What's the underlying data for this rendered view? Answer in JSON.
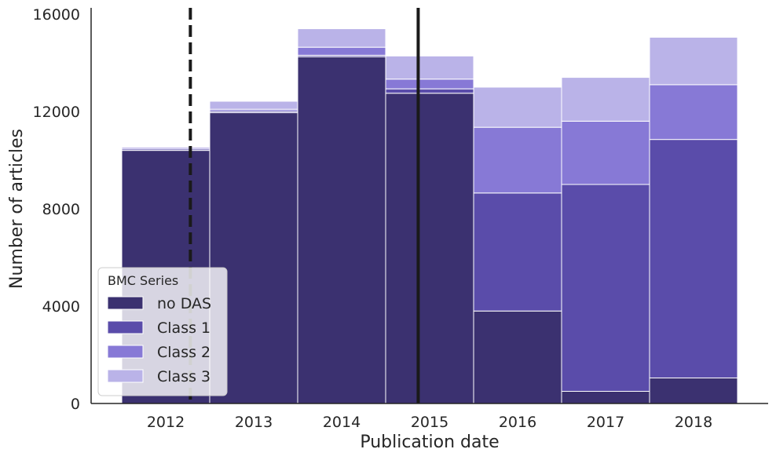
{
  "chart_data": {
    "type": "bar",
    "stacked": true,
    "categories": [
      "2012",
      "2013",
      "2014",
      "2015",
      "2016",
      "2017",
      "2018"
    ],
    "series": [
      {
        "name": "no DAS",
        "color": "#3b3170",
        "values": [
          10400,
          11950,
          14250,
          12750,
          3800,
          500,
          1050
        ]
      },
      {
        "name": "Class 1",
        "color": "#5a4caa",
        "values": [
          60,
          60,
          60,
          180,
          4850,
          8500,
          9800
        ]
      },
      {
        "name": "Class 2",
        "color": "#8779d6",
        "values": [
          60,
          80,
          330,
          400,
          2700,
          2600,
          2250
        ]
      },
      {
        "name": "Class 3",
        "color": "#bab3e8",
        "values": [
          30,
          330,
          760,
          950,
          1650,
          1800,
          1950
        ]
      }
    ],
    "xlabel": "Publication date",
    "ylabel": "Number of articles",
    "ylim": [
      0,
      16000
    ],
    "yticks": [
      "0",
      "4000",
      "8000",
      "12000",
      "16000"
    ],
    "legend": {
      "title": "BMC Series",
      "placement": "lower-left"
    },
    "grid": false,
    "reference_lines": [
      {
        "style": "dashed",
        "x": 2012.28,
        "color": "#1a1a1a"
      },
      {
        "style": "solid",
        "x": 2014.87,
        "color": "#1a1a1a"
      }
    ]
  }
}
